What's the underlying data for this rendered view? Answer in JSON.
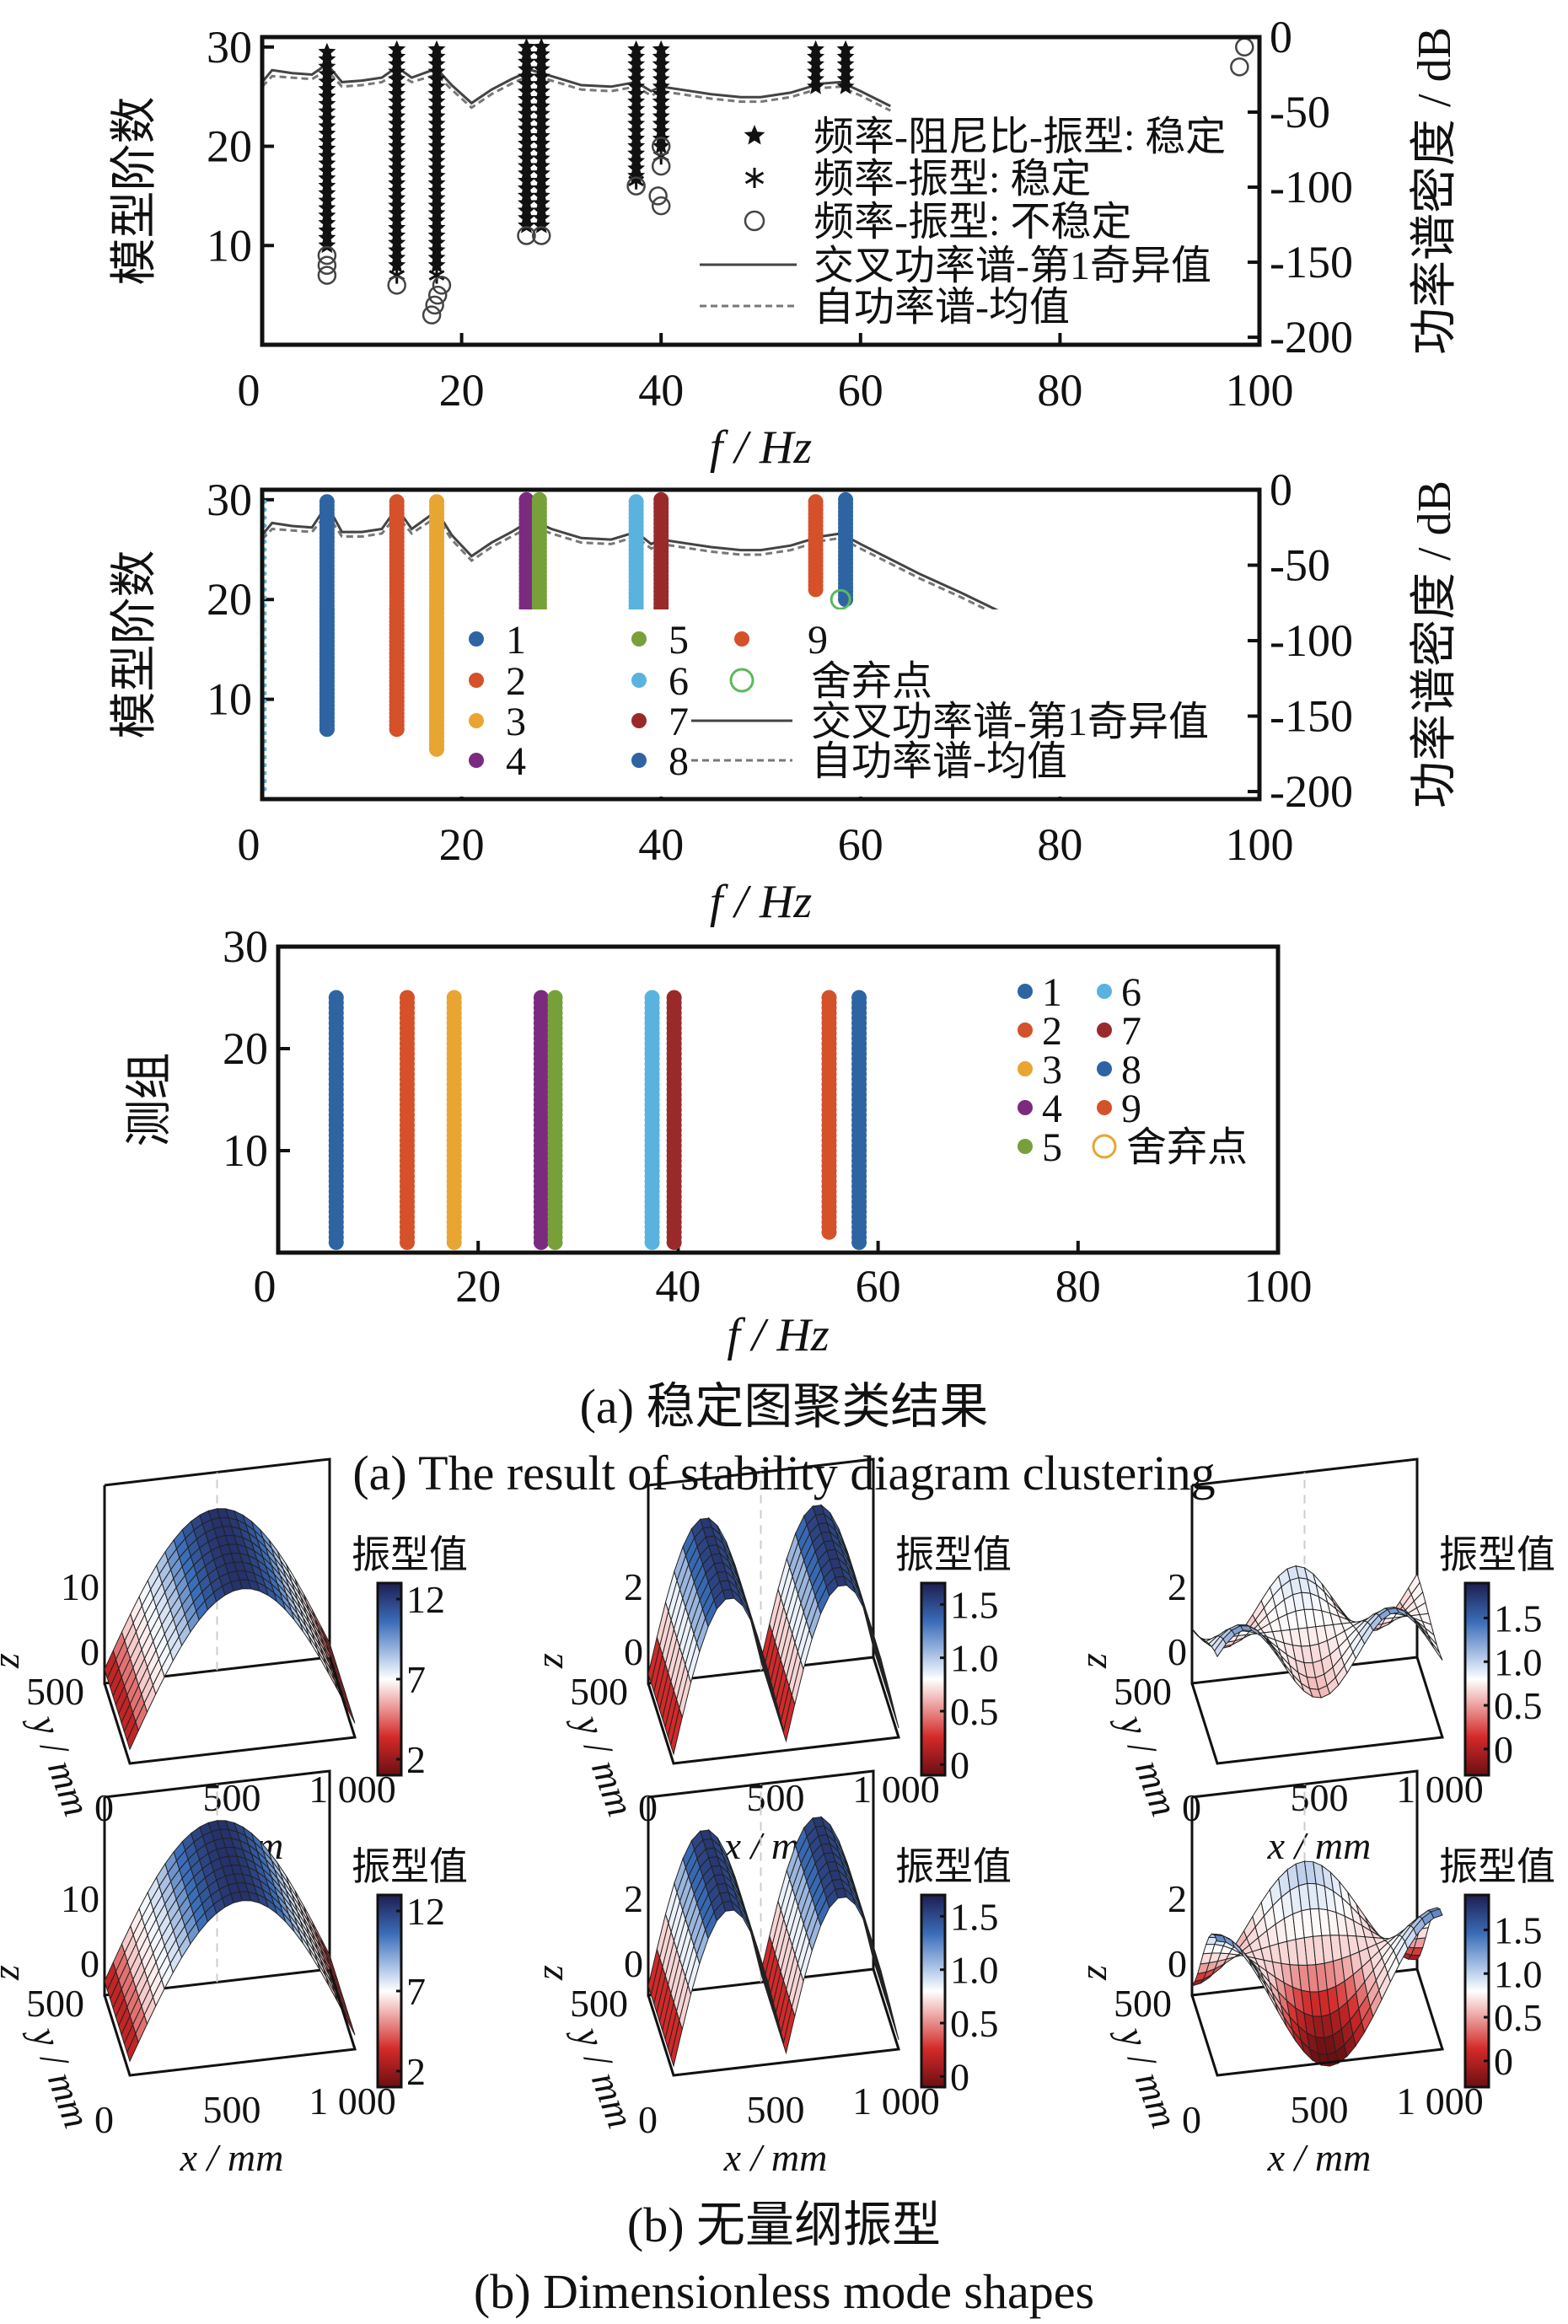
{
  "figure_a": {
    "caption_cn": "(a)  稳定图聚类结果",
    "caption_en": "(a)  The result of stability diagram clustering"
  },
  "figure_b": {
    "caption_cn": "(b)  无量纲振型",
    "caption_en": "(b)  Dimensionless mode shapes"
  },
  "chart_data": [
    {
      "type": "scatter",
      "xlabel": "f / Hz",
      "ylabel": "模型阶数",
      "y2label": "功率谱密度 / dB",
      "xlim": [
        0,
        100
      ],
      "ylim": [
        0,
        31
      ],
      "y2lim": [
        -205,
        0
      ],
      "xticks": [
        0,
        20,
        40,
        60,
        80,
        100
      ],
      "yticks": [
        10,
        20,
        30
      ],
      "y2ticks": [
        0,
        -50,
        -100,
        -150,
        -200
      ],
      "grid": false,
      "legend_position": "right",
      "legend": [
        "频率-阻尼比-振型: 稳定",
        "频率-振型: 稳定",
        "频率-振型: 不稳定",
        "交叉功率谱-第1奇异值",
        "自功率谱-均值"
      ],
      "stable_freq_damping_mode": [
        {
          "f": 6.5,
          "from": 10,
          "to": 30
        },
        {
          "f": 13.5,
          "from": 8,
          "to": 30
        },
        {
          "f": 17.5,
          "from": 8,
          "to": 30
        },
        {
          "f": 26.5,
          "from": 12,
          "to": 30
        },
        {
          "f": 28,
          "from": 12,
          "to": 30
        },
        {
          "f": 37.5,
          "from": 17,
          "to": 30
        },
        {
          "f": 40,
          "from": 20,
          "to": 30
        },
        {
          "f": 55.5,
          "from": 26,
          "to": 30
        },
        {
          "f": 58.5,
          "from": 26,
          "to": 30
        }
      ],
      "stable_freq_mode": [
        [
          13.5,
          7
        ],
        [
          17.5,
          7
        ],
        [
          37.5,
          16.5
        ],
        [
          40,
          19
        ]
      ],
      "unstable_freq_mode": [
        [
          6.5,
          7
        ],
        [
          6.5,
          8
        ],
        [
          6.5,
          9
        ],
        [
          13.5,
          6
        ],
        [
          17,
          3
        ],
        [
          17.3,
          4
        ],
        [
          17.6,
          5
        ],
        [
          18,
          6
        ],
        [
          26.5,
          11
        ],
        [
          28,
          11
        ],
        [
          37.5,
          16
        ],
        [
          40,
          20
        ],
        [
          40,
          18
        ],
        [
          39.7,
          15
        ],
        [
          40,
          14
        ],
        [
          98,
          28
        ],
        [
          98.5,
          30
        ]
      ],
      "psd_cross_first_sv": {
        "f": [
          0,
          1,
          3,
          5,
          6.5,
          8,
          10,
          12,
          13.5,
          15,
          17.5,
          19,
          21,
          23,
          25,
          27,
          29,
          32,
          35,
          37.5,
          39,
          40,
          42,
          45,
          48,
          50,
          53,
          56,
          58,
          60,
          63
        ],
        "db": [
          -30,
          -22,
          -24,
          -25,
          -18,
          -30,
          -29,
          -27,
          -20,
          -27,
          -21,
          -32,
          -44,
          -35,
          -28,
          -22,
          -26,
          -32,
          -33,
          -30,
          -36,
          -33,
          -35,
          -38,
          -40,
          -40,
          -37,
          -31,
          -30,
          -36,
          -46
        ]
      },
      "psd_auto_mean": {
        "f": [
          0,
          1,
          3,
          5,
          6.5,
          8,
          10,
          12,
          13.5,
          15,
          17.5,
          19,
          21,
          23,
          25,
          27,
          29,
          32,
          35,
          37.5,
          39,
          40,
          42,
          45,
          48,
          50,
          53,
          56,
          58,
          60,
          63
        ],
        "db": [
          -33,
          -26,
          -27,
          -28,
          -22,
          -33,
          -32,
          -30,
          -24,
          -30,
          -25,
          -35,
          -47,
          -38,
          -31,
          -25,
          -29,
          -35,
          -36,
          -33,
          -39,
          -36,
          -38,
          -41,
          -43,
          -43,
          -40,
          -34,
          -33,
          -39,
          -49
        ]
      }
    },
    {
      "type": "scatter",
      "xlabel": "f / Hz",
      "ylabel": "模型阶数",
      "y2label": "功率谱密度 / dB",
      "xlim": [
        0,
        100
      ],
      "ylim": [
        0,
        31
      ],
      "y2lim": [
        -205,
        0
      ],
      "xticks": [
        0,
        20,
        40,
        60,
        80,
        100
      ],
      "yticks": [
        10,
        20,
        30
      ],
      "y2ticks": [
        0,
        -50,
        -100,
        -150,
        -200
      ],
      "grid": false,
      "legend_position": "bottom-right",
      "clusters": [
        {
          "name": "1",
          "f": 6.5,
          "from": 7,
          "to": 30,
          "color": "#2f64a3"
        },
        {
          "name": "2",
          "f": 13.5,
          "from": 7,
          "to": 30,
          "color": "#d4512a"
        },
        {
          "name": "3",
          "f": 17.5,
          "from": 5,
          "to": 30,
          "color": "#e8a532"
        },
        {
          "name": "4",
          "f": 26.5,
          "from": 12,
          "to": 30,
          "color": "#7b2b7f"
        },
        {
          "name": "5",
          "f": 27.8,
          "from": 12,
          "to": 30,
          "color": "#78a03a"
        },
        {
          "name": "6",
          "f": 37.5,
          "from": 17,
          "to": 30,
          "color": "#5ab3de"
        },
        {
          "name": "7",
          "f": 40,
          "from": 14,
          "to": 30,
          "color": "#9a2a2a"
        },
        {
          "name": "8",
          "f": 58.5,
          "from": 20,
          "to": 30,
          "color": "#2f64a3"
        },
        {
          "name": "9",
          "f": 55.5,
          "from": 21,
          "to": 30,
          "color": "#d4512a"
        }
      ],
      "discard": {
        "name": "舍弃点",
        "color": "#5cb85c",
        "points": [
          [
            58,
            20
          ]
        ]
      },
      "line_legend": [
        "交叉功率谱-第1奇异值",
        "自功率谱-均值"
      ],
      "psd_cross_first_sv": {
        "f": [
          0,
          1,
          3,
          5,
          6.5,
          8,
          10,
          12,
          13.5,
          15,
          17.5,
          19,
          21,
          23,
          25,
          27,
          29,
          32,
          35,
          37.5,
          39,
          40,
          42,
          45,
          48,
          50,
          53,
          56,
          58,
          60,
          63,
          66,
          70,
          75
        ],
        "db": [
          -30,
          -22,
          -24,
          -25,
          -10,
          -28,
          -28,
          -26,
          -12,
          -26,
          -14,
          -30,
          -44,
          -35,
          -28,
          -20,
          -26,
          -32,
          -33,
          -28,
          -36,
          -33,
          -35,
          -38,
          -40,
          -40,
          -37,
          -31,
          -29,
          -36,
          -46,
          -56,
          -68,
          -84
        ]
      },
      "psd_auto_mean": {
        "f": [
          0,
          1,
          3,
          5,
          6.5,
          8,
          10,
          12,
          13.5,
          15,
          17.5,
          19,
          21,
          23,
          25,
          27,
          29,
          32,
          35,
          37.5,
          39,
          40,
          42,
          45,
          48,
          50,
          53,
          56,
          58,
          60,
          63,
          66,
          70,
          75
        ],
        "db": [
          -33,
          -26,
          -27,
          -28,
          -16,
          -31,
          -31,
          -29,
          -17,
          -29,
          -18,
          -33,
          -47,
          -38,
          -31,
          -24,
          -29,
          -35,
          -36,
          -31,
          -39,
          -36,
          -38,
          -41,
          -43,
          -43,
          -40,
          -34,
          -32,
          -39,
          -49,
          -59,
          -71,
          -87
        ]
      }
    },
    {
      "type": "scatter",
      "xlabel": "f / Hz",
      "ylabel": "测组",
      "xlim": [
        0,
        100
      ],
      "ylim": [
        0,
        30
      ],
      "xticks": [
        0,
        20,
        40,
        60,
        80,
        100
      ],
      "yticks": [
        10,
        20,
        30
      ],
      "grid": false,
      "legend_position": "top-right",
      "clusters": [
        {
          "name": "1",
          "f": 5.8,
          "from": 1,
          "to": 25,
          "color": "#2f64a3"
        },
        {
          "name": "2",
          "f": 12.9,
          "from": 1,
          "to": 25,
          "color": "#d4512a"
        },
        {
          "name": "3",
          "f": 17.6,
          "from": 1,
          "to": 25,
          "color": "#e8a532"
        },
        {
          "name": "4",
          "f": 26.3,
          "from": 1,
          "to": 25,
          "color": "#7b2b7f"
        },
        {
          "name": "5",
          "f": 27.7,
          "from": 1,
          "to": 25,
          "color": "#78a03a"
        },
        {
          "name": "6",
          "f": 37.4,
          "from": 1,
          "to": 25,
          "color": "#5ab3de"
        },
        {
          "name": "7",
          "f": 39.6,
          "from": 1,
          "to": 25,
          "color": "#9a2a2a"
        },
        {
          "name": "8",
          "f": 58.1,
          "from": 1,
          "to": 25,
          "color": "#2f64a3"
        },
        {
          "name": "9",
          "f": 55.1,
          "from": 2,
          "to": 25,
          "color": "#d4512a"
        }
      ],
      "discard": {
        "name": "舍弃点",
        "color": "#e8a532",
        "points": []
      }
    },
    {
      "type": "surface",
      "panels": [
        {
          "mode": 1,
          "row": 1,
          "colorbar_title": "振型值",
          "colorbar_ticks": [
            "12",
            "7",
            "2"
          ],
          "colorbar_range": [
            1,
            13
          ],
          "z_ticks": [
            "10",
            "0"
          ],
          "x_ticks": [
            "500",
            "1 000"
          ],
          "y_ticks": [
            "500",
            "0"
          ],
          "xlabel": "x / mm",
          "ylabel": "y / mm",
          "zlabel": "z"
        },
        {
          "mode": 2,
          "row": 1,
          "colorbar_title": "振型值",
          "colorbar_ticks": [
            "1.5",
            "1.0",
            "0.5",
            "0"
          ],
          "colorbar_range": [
            -0.1,
            1.7
          ],
          "z_ticks": [
            "2",
            "0"
          ],
          "x_ticks": [
            "500",
            "1 000"
          ],
          "y_ticks": [
            "500",
            "0"
          ],
          "xlabel": "x / mm",
          "ylabel": "y / mm",
          "zlabel": "z"
        },
        {
          "mode": 3,
          "row": 1,
          "colorbar_title": "振型值",
          "colorbar_ticks": [
            "1.5",
            "1.0",
            "0.5",
            "0"
          ],
          "colorbar_range": [
            -0.3,
            1.9
          ],
          "z_ticks": [
            "2",
            "0"
          ],
          "x_ticks": [
            "500",
            "1 000"
          ],
          "y_ticks": [
            "500",
            "0"
          ],
          "xlabel": "x / mm",
          "ylabel": "y / mm",
          "zlabel": "z"
        },
        {
          "mode": 1,
          "row": 2,
          "colorbar_title": "振型值",
          "colorbar_ticks": [
            "12",
            "7",
            "2"
          ],
          "colorbar_range": [
            1,
            13
          ],
          "z_ticks": [
            "10",
            "0"
          ],
          "x_ticks": [
            "500",
            "1 000"
          ],
          "y_ticks": [
            "500",
            "0"
          ],
          "xlabel": "x / mm",
          "ylabel": "y / mm",
          "zlabel": "z"
        },
        {
          "mode": 2,
          "row": 2,
          "colorbar_title": "振型值",
          "colorbar_ticks": [
            "1.5",
            "1.0",
            "0.5",
            "0"
          ],
          "colorbar_range": [
            -0.1,
            1.7
          ],
          "z_ticks": [
            "2",
            "0"
          ],
          "x_ticks": [
            "500",
            "1 000"
          ],
          "y_ticks": [
            "500",
            "0"
          ],
          "xlabel": "x / mm",
          "ylabel": "y / mm",
          "zlabel": "z"
        },
        {
          "mode": 3,
          "row": 2,
          "colorbar_title": "振型值",
          "colorbar_ticks": [
            "1.5",
            "1.0",
            "0.5",
            "0"
          ],
          "colorbar_range": [
            -0.3,
            1.9
          ],
          "z_ticks": [
            "2",
            "0"
          ],
          "x_ticks": [
            "500",
            "1 000"
          ],
          "y_ticks": [
            "500",
            "0"
          ],
          "xlabel": "x / mm",
          "ylabel": "y / mm",
          "zlabel": "z"
        }
      ],
      "colormap": [
        "#6b0f12",
        "#d42a2a",
        "#f5c8c8",
        "#ffffff",
        "#c8d8f0",
        "#3a6cb8",
        "#1e1e50"
      ]
    }
  ]
}
